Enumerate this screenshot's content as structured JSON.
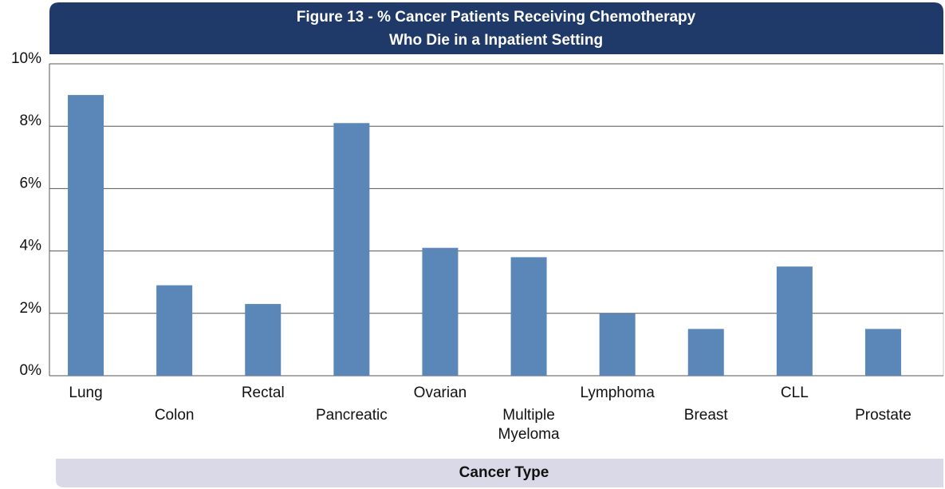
{
  "chart_data": {
    "type": "bar",
    "title": [
      "Figure 13 - % Cancer Patients Receiving Chemotherapy",
      "Who Die in a Inpatient Setting"
    ],
    "x_label": "Cancer Type",
    "categories": [
      "Lung",
      "Colon",
      "Rectal",
      "Pancreatic",
      "Ovarian",
      "Multiple Myeloma",
      "Lymphoma",
      "Breast",
      "CLL",
      "Prostate"
    ],
    "values": [
      9.0,
      2.9,
      2.3,
      8.1,
      4.1,
      3.8,
      2.0,
      1.5,
      3.5,
      1.5
    ],
    "color": "#5a87b8",
    "ylim": [
      0,
      10
    ],
    "yticks": [
      {
        "value": 0,
        "label": "0%"
      },
      {
        "value": 2,
        "label": "2%"
      },
      {
        "value": 4,
        "label": "4%"
      },
      {
        "value": 6,
        "label": "6%"
      },
      {
        "value": 8,
        "label": "8%"
      },
      {
        "value": 10,
        "label": "10%"
      }
    ],
    "grid": true
  }
}
